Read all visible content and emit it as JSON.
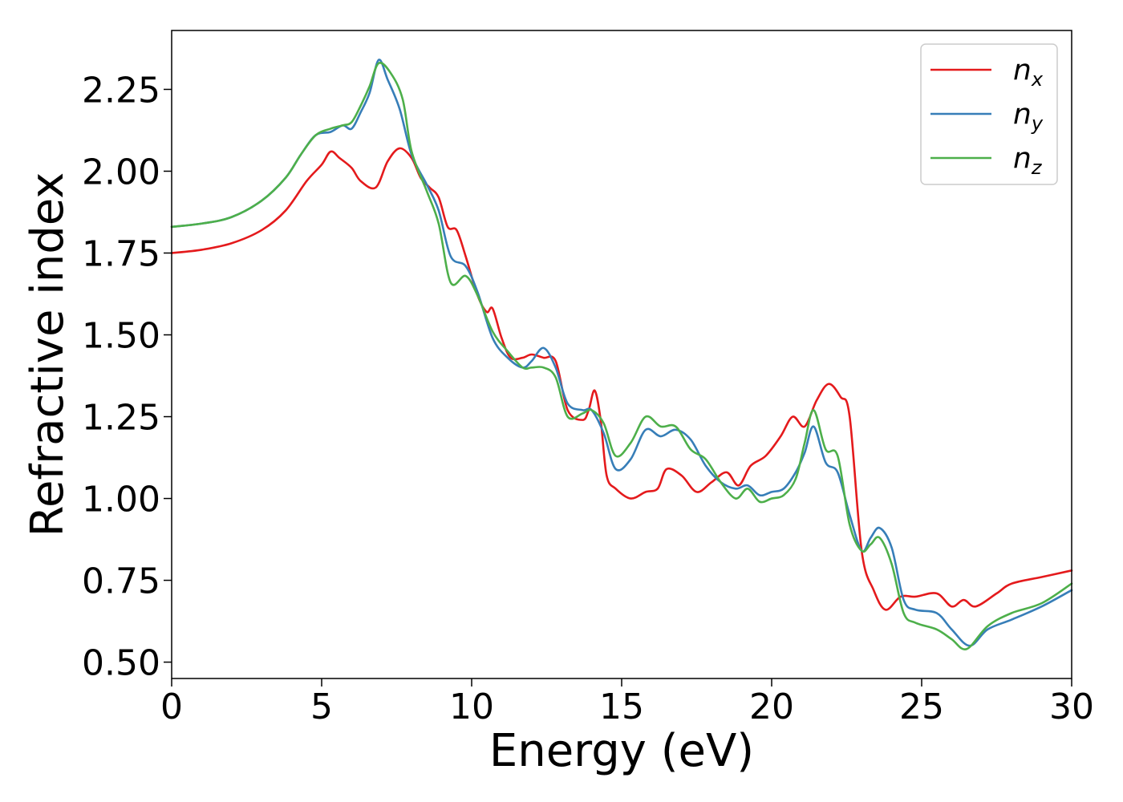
{
  "chart_data": {
    "type": "line",
    "xlabel": "Energy (eV)",
    "ylabel": "Refractive index",
    "xlim": [
      0,
      30
    ],
    "ylim": [
      0.45,
      2.43
    ],
    "xticks": [
      0,
      5,
      10,
      15,
      20,
      25,
      30
    ],
    "xtick_labels": [
      "0",
      "5",
      "10",
      "15",
      "20",
      "25",
      "30"
    ],
    "yticks": [
      0.5,
      0.75,
      1.0,
      1.25,
      1.5,
      1.75,
      2.0,
      2.25
    ],
    "ytick_labels": [
      "0.50",
      "0.75",
      "1.00",
      "1.25",
      "1.50",
      "1.75",
      "2.00",
      "2.25"
    ],
    "grid": false,
    "legend_position": "top-right",
    "series": [
      {
        "name": "n",
        "subscript": "x",
        "color": "#e41a1c",
        "points": [
          [
            0,
            1.75
          ],
          [
            1,
            1.76
          ],
          [
            2,
            1.78
          ],
          [
            3,
            1.82
          ],
          [
            3.8,
            1.88
          ],
          [
            4.5,
            1.97
          ],
          [
            5.0,
            2.02
          ],
          [
            5.3,
            2.06
          ],
          [
            5.6,
            2.04
          ],
          [
            6.0,
            2.01
          ],
          [
            6.3,
            1.97
          ],
          [
            6.8,
            1.95
          ],
          [
            7.2,
            2.03
          ],
          [
            7.6,
            2.07
          ],
          [
            8.0,
            2.04
          ],
          [
            8.3,
            1.98
          ],
          [
            8.6,
            1.95
          ],
          [
            8.9,
            1.92
          ],
          [
            9.2,
            1.83
          ],
          [
            9.5,
            1.82
          ],
          [
            9.8,
            1.74
          ],
          [
            10.2,
            1.62
          ],
          [
            10.5,
            1.57
          ],
          [
            10.7,
            1.58
          ],
          [
            11.0,
            1.49
          ],
          [
            11.3,
            1.43
          ],
          [
            11.7,
            1.43
          ],
          [
            12.0,
            1.44
          ],
          [
            12.4,
            1.43
          ],
          [
            12.8,
            1.42
          ],
          [
            13.2,
            1.27
          ],
          [
            13.7,
            1.24
          ],
          [
            13.9,
            1.27
          ],
          [
            14.1,
            1.33
          ],
          [
            14.3,
            1.24
          ],
          [
            14.5,
            1.07
          ],
          [
            14.8,
            1.03
          ],
          [
            15.3,
            1.0
          ],
          [
            15.8,
            1.02
          ],
          [
            16.2,
            1.03
          ],
          [
            16.5,
            1.09
          ],
          [
            17.0,
            1.07
          ],
          [
            17.5,
            1.02
          ],
          [
            18.0,
            1.05
          ],
          [
            18.5,
            1.08
          ],
          [
            18.9,
            1.04
          ],
          [
            19.3,
            1.1
          ],
          [
            19.8,
            1.13
          ],
          [
            20.3,
            1.19
          ],
          [
            20.7,
            1.25
          ],
          [
            21.1,
            1.22
          ],
          [
            21.5,
            1.3
          ],
          [
            21.9,
            1.35
          ],
          [
            22.3,
            1.31
          ],
          [
            22.6,
            1.25
          ],
          [
            23.0,
            0.84
          ],
          [
            23.4,
            0.72
          ],
          [
            23.8,
            0.66
          ],
          [
            24.3,
            0.7
          ],
          [
            24.8,
            0.7
          ],
          [
            25.5,
            0.71
          ],
          [
            26.0,
            0.67
          ],
          [
            26.4,
            0.69
          ],
          [
            26.8,
            0.67
          ],
          [
            27.5,
            0.71
          ],
          [
            28.0,
            0.74
          ],
          [
            29.0,
            0.76
          ],
          [
            30.0,
            0.78
          ]
        ]
      },
      {
        "name": "n",
        "subscript": "y",
        "color": "#377eb8",
        "points": [
          [
            0,
            1.83
          ],
          [
            1,
            1.84
          ],
          [
            2,
            1.86
          ],
          [
            3,
            1.91
          ],
          [
            3.8,
            1.98
          ],
          [
            4.3,
            2.05
          ],
          [
            4.8,
            2.11
          ],
          [
            5.3,
            2.12
          ],
          [
            5.7,
            2.14
          ],
          [
            6.0,
            2.13
          ],
          [
            6.3,
            2.18
          ],
          [
            6.6,
            2.24
          ],
          [
            6.9,
            2.34
          ],
          [
            7.2,
            2.28
          ],
          [
            7.6,
            2.19
          ],
          [
            8.0,
            2.05
          ],
          [
            8.5,
            1.96
          ],
          [
            8.9,
            1.88
          ],
          [
            9.3,
            1.74
          ],
          [
            9.8,
            1.71
          ],
          [
            10.2,
            1.63
          ],
          [
            10.7,
            1.49
          ],
          [
            11.2,
            1.43
          ],
          [
            11.7,
            1.4
          ],
          [
            12.0,
            1.42
          ],
          [
            12.4,
            1.46
          ],
          [
            12.8,
            1.4
          ],
          [
            13.2,
            1.29
          ],
          [
            13.7,
            1.27
          ],
          [
            14.0,
            1.27
          ],
          [
            14.4,
            1.2
          ],
          [
            14.8,
            1.09
          ],
          [
            15.3,
            1.12
          ],
          [
            15.8,
            1.21
          ],
          [
            16.3,
            1.19
          ],
          [
            16.8,
            1.21
          ],
          [
            17.3,
            1.18
          ],
          [
            17.8,
            1.1
          ],
          [
            18.3,
            1.05
          ],
          [
            18.8,
            1.03
          ],
          [
            19.2,
            1.04
          ],
          [
            19.6,
            1.01
          ],
          [
            20.0,
            1.02
          ],
          [
            20.4,
            1.03
          ],
          [
            20.8,
            1.08
          ],
          [
            21.1,
            1.14
          ],
          [
            21.4,
            1.22
          ],
          [
            21.8,
            1.11
          ],
          [
            22.2,
            1.08
          ],
          [
            22.6,
            0.95
          ],
          [
            23.0,
            0.84
          ],
          [
            23.3,
            0.88
          ],
          [
            23.6,
            0.91
          ],
          [
            24.0,
            0.85
          ],
          [
            24.4,
            0.69
          ],
          [
            24.8,
            0.66
          ],
          [
            25.5,
            0.65
          ],
          [
            26.0,
            0.6
          ],
          [
            26.6,
            0.55
          ],
          [
            27.2,
            0.6
          ],
          [
            28.0,
            0.63
          ],
          [
            29.0,
            0.67
          ],
          [
            30.0,
            0.72
          ]
        ]
      },
      {
        "name": "n",
        "subscript": "z",
        "color": "#4daf4a",
        "points": [
          [
            0,
            1.83
          ],
          [
            1,
            1.84
          ],
          [
            2,
            1.86
          ],
          [
            3,
            1.91
          ],
          [
            3.8,
            1.98
          ],
          [
            4.3,
            2.05
          ],
          [
            4.8,
            2.11
          ],
          [
            5.3,
            2.13
          ],
          [
            5.7,
            2.14
          ],
          [
            6.0,
            2.15
          ],
          [
            6.3,
            2.2
          ],
          [
            6.6,
            2.26
          ],
          [
            6.9,
            2.33
          ],
          [
            7.3,
            2.3
          ],
          [
            7.7,
            2.22
          ],
          [
            8.0,
            2.06
          ],
          [
            8.5,
            1.94
          ],
          [
            8.9,
            1.84
          ],
          [
            9.3,
            1.66
          ],
          [
            9.8,
            1.68
          ],
          [
            10.2,
            1.62
          ],
          [
            10.7,
            1.51
          ],
          [
            11.2,
            1.45
          ],
          [
            11.7,
            1.4
          ],
          [
            12.0,
            1.4
          ],
          [
            12.4,
            1.4
          ],
          [
            12.8,
            1.37
          ],
          [
            13.2,
            1.25
          ],
          [
            13.7,
            1.26
          ],
          [
            14.0,
            1.27
          ],
          [
            14.4,
            1.23
          ],
          [
            14.8,
            1.13
          ],
          [
            15.3,
            1.17
          ],
          [
            15.8,
            1.25
          ],
          [
            16.3,
            1.22
          ],
          [
            16.8,
            1.22
          ],
          [
            17.3,
            1.15
          ],
          [
            17.8,
            1.12
          ],
          [
            18.3,
            1.05
          ],
          [
            18.8,
            1.0
          ],
          [
            19.2,
            1.03
          ],
          [
            19.6,
            0.99
          ],
          [
            20.0,
            1.0
          ],
          [
            20.4,
            1.01
          ],
          [
            20.8,
            1.06
          ],
          [
            21.1,
            1.17
          ],
          [
            21.4,
            1.27
          ],
          [
            21.8,
            1.15
          ],
          [
            22.2,
            1.13
          ],
          [
            22.6,
            0.92
          ],
          [
            23.0,
            0.84
          ],
          [
            23.3,
            0.86
          ],
          [
            23.6,
            0.88
          ],
          [
            24.0,
            0.8
          ],
          [
            24.4,
            0.65
          ],
          [
            24.8,
            0.62
          ],
          [
            25.5,
            0.6
          ],
          [
            26.0,
            0.57
          ],
          [
            26.5,
            0.54
          ],
          [
            27.2,
            0.61
          ],
          [
            28.0,
            0.65
          ],
          [
            29.0,
            0.68
          ],
          [
            30.0,
            0.74
          ]
        ]
      }
    ]
  }
}
